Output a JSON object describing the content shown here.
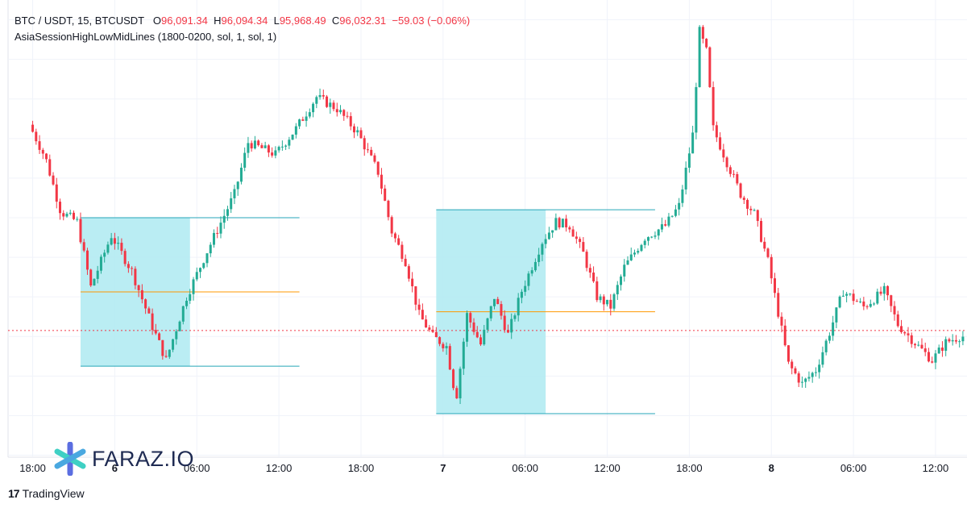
{
  "legend": {
    "symbol": "BTC / USDT, 15, BTCUSDT",
    "open_label": "O",
    "open": "96,091.34",
    "high_label": "H",
    "high": "96,094.34",
    "low_label": "L",
    "low": "95,968.49",
    "close_label": "C",
    "close": "96,032.31",
    "change": "−59.03 (−0.06%)",
    "indicator": "AsiaSessionHighLowMidLines (1800-0200, sol, 1, sol, 1)"
  },
  "branding": {
    "watermark": "FARAZ.IO",
    "tradingview": "TradingView"
  },
  "colors": {
    "up": "#22ab94",
    "down": "#f23645",
    "box_fill": "#b2ebf2",
    "session_line": "#26a6b8",
    "mid_line": "#ff9800",
    "price_line": "#f23645",
    "grid": "#f0f3fa"
  },
  "chart_data": {
    "type": "candlestick",
    "title": "BTC / USDT, 15, BTCUSDT",
    "xlabel": "",
    "ylabel": "",
    "x_ticks": [
      {
        "label": "18:00",
        "bold": false,
        "t": 0
      },
      {
        "label": "6",
        "bold": true,
        "t": 6
      },
      {
        "label": "06:00",
        "bold": false,
        "t": 12
      },
      {
        "label": "12:00",
        "bold": false,
        "t": 18
      },
      {
        "label": "18:00",
        "bold": false,
        "t": 24
      },
      {
        "label": "7",
        "bold": true,
        "t": 30
      },
      {
        "label": "06:00",
        "bold": false,
        "t": 36
      },
      {
        "label": "12:00",
        "bold": false,
        "t": 42
      },
      {
        "label": "18:00",
        "bold": false,
        "t": 48
      },
      {
        "label": "8",
        "bold": true,
        "t": 54
      },
      {
        "label": "06:00",
        "bold": false,
        "t": 60
      },
      {
        "label": "12:00",
        "bold": false,
        "t": 66
      }
    ],
    "x_range": [
      -1.8,
      68.3
    ],
    "y_range": [
      94390,
      96700
    ],
    "grid": true,
    "asia_sessions": [
      {
        "start": 3.5,
        "end": 11.5,
        "line_end": 19.5,
        "high": 95600,
        "low": 94850,
        "mid": 95225
      },
      {
        "start": 29.5,
        "end": 37.5,
        "line_end": 45.5,
        "high": 95640,
        "low": 94610,
        "mid": 95125
      }
    ],
    "last_price": 95030,
    "anchors": [
      [
        0.0,
        96070
      ],
      [
        1.2,
        95900
      ],
      [
        2.3,
        95630
      ],
      [
        3.5,
        95580
      ],
      [
        4.5,
        95250
      ],
      [
        6.0,
        95510
      ],
      [
        7.5,
        95330
      ],
      [
        9.0,
        95050
      ],
      [
        10.0,
        94880
      ],
      [
        11.5,
        95200
      ],
      [
        13.0,
        95430
      ],
      [
        15.0,
        95720
      ],
      [
        16.0,
        95980
      ],
      [
        18.0,
        95920
      ],
      [
        19.5,
        96050
      ],
      [
        21.0,
        96210
      ],
      [
        22.5,
        96150
      ],
      [
        24.0,
        96030
      ],
      [
        25.5,
        95830
      ],
      [
        26.5,
        95530
      ],
      [
        27.5,
        95380
      ],
      [
        28.5,
        95110
      ],
      [
        29.5,
        95000
      ],
      [
        30.5,
        94950
      ],
      [
        31.2,
        94680
      ],
      [
        32.0,
        95110
      ],
      [
        33.0,
        94960
      ],
      [
        34.0,
        95200
      ],
      [
        35.0,
        95010
      ],
      [
        36.0,
        95230
      ],
      [
        37.5,
        95480
      ],
      [
        38.5,
        95580
      ],
      [
        39.5,
        95560
      ],
      [
        40.5,
        95420
      ],
      [
        41.5,
        95200
      ],
      [
        42.5,
        95150
      ],
      [
        43.5,
        95350
      ],
      [
        45.0,
        95500
      ],
      [
        46.5,
        95560
      ],
      [
        47.5,
        95660
      ],
      [
        48.5,
        96020
      ],
      [
        49.0,
        96540
      ],
      [
        49.5,
        96440
      ],
      [
        50.0,
        96050
      ],
      [
        51.0,
        95880
      ],
      [
        52.0,
        95720
      ],
      [
        53.0,
        95620
      ],
      [
        54.0,
        95380
      ],
      [
        55.5,
        94860
      ],
      [
        56.5,
        94760
      ],
      [
        57.5,
        94830
      ],
      [
        58.5,
        95020
      ],
      [
        59.5,
        95230
      ],
      [
        61.0,
        95150
      ],
      [
        62.5,
        95230
      ],
      [
        63.5,
        95060
      ],
      [
        65.0,
        94950
      ],
      [
        66.0,
        94880
      ],
      [
        67.0,
        94970
      ],
      [
        68.0,
        95000
      ]
    ]
  }
}
